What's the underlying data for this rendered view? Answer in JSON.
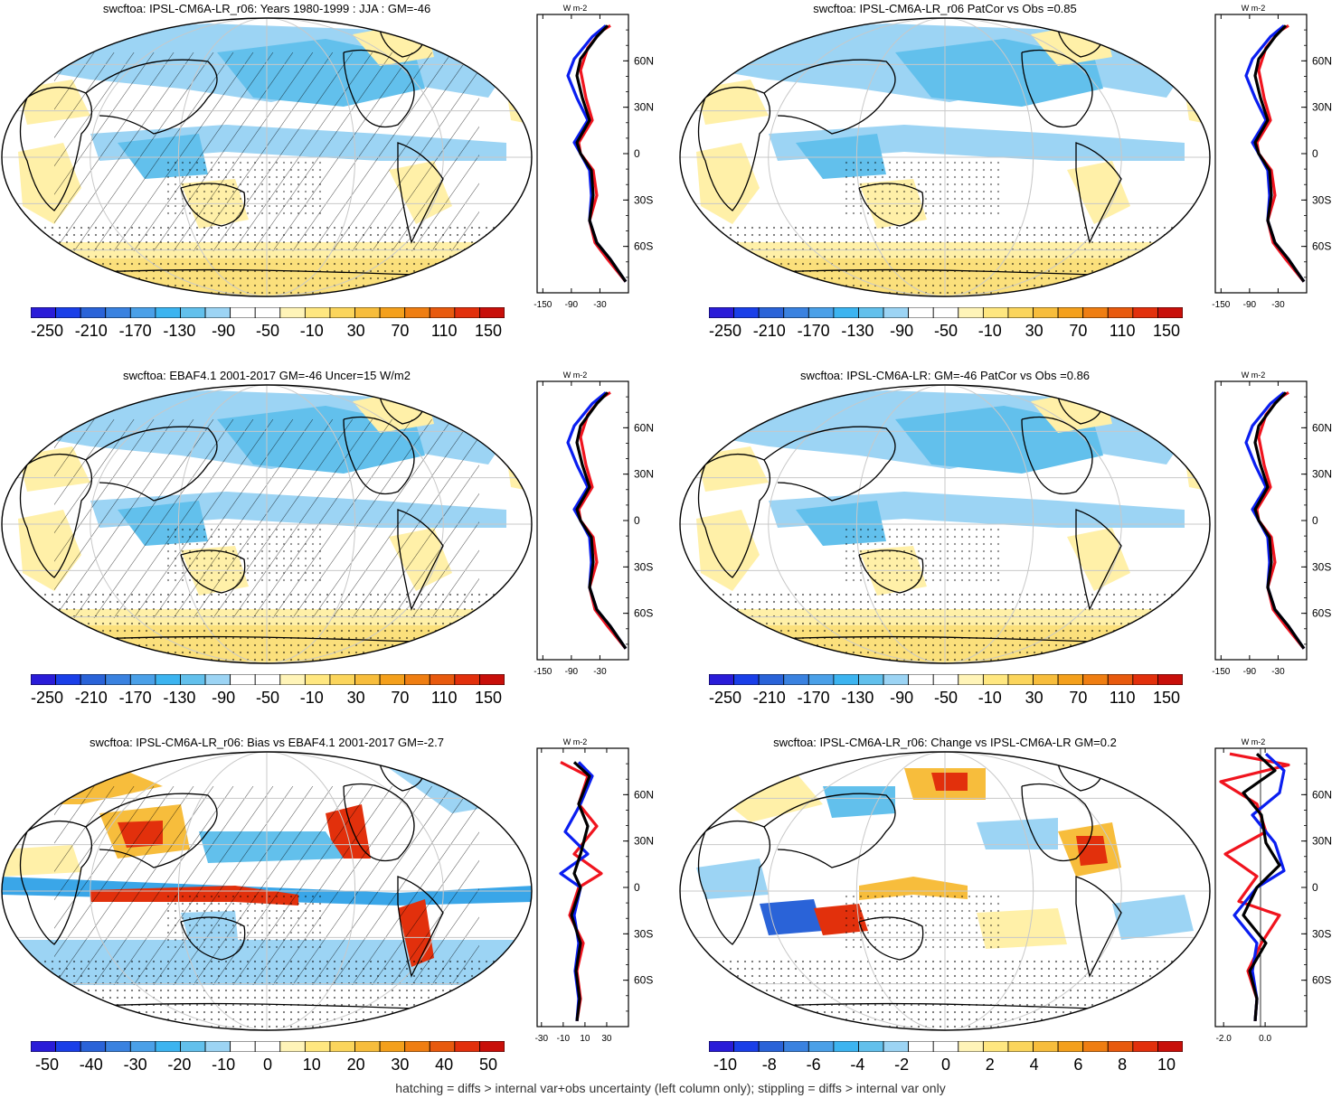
{
  "footer": "hatching = diffs > internal var+obs uncertainty (left column only); stippling = diffs > internal var only",
  "colors": {
    "colorbar_fill": [
      "#2a1cd8",
      "#1a3fe8",
      "#2a63d8",
      "#3a82e0",
      "#4aa0e8",
      "#3cb4f0",
      "#62c0ec",
      "#9cd4f4",
      "#ffffff",
      "#ffffff",
      "#fff4b8",
      "#ffe780",
      "#fbd55c",
      "#f7bd3c",
      "#f4a01c",
      "#ef7e12",
      "#e85a0e",
      "#e2300c",
      "#c80f0a"
    ],
    "model_line": "#000000",
    "obs_line": "#0a1ef0",
    "second_line": "#f0141e"
  },
  "panels": [
    {
      "id": "p1",
      "title": "swcftoa: IPSL-CM6A-LR_r06: Years 1980-1999 : JJA : GM=-46",
      "colorbar_labels": [
        "-250",
        "-210",
        "-170",
        "-130",
        "-90",
        "-50",
        "-10",
        "30",
        "70",
        "110",
        "150"
      ],
      "profile_xticks": [
        "-150",
        "-90",
        "-30"
      ],
      "profile_ylabels": [
        "60N",
        "30N",
        "0",
        "30S",
        "60S"
      ],
      "profile_unit": "W m-2",
      "hatching": true,
      "stippling": true,
      "map_style": "clim"
    },
    {
      "id": "p2",
      "title": "swcftoa: IPSL-CM6A-LR_r06 PatCor vs Obs =0.85",
      "colorbar_labels": [
        "-250",
        "-210",
        "-170",
        "-130",
        "-90",
        "-50",
        "-10",
        "30",
        "70",
        "110",
        "150"
      ],
      "profile_xticks": [
        "-150",
        "-90",
        "-30"
      ],
      "profile_ylabels": [
        "60N",
        "30N",
        "0",
        "30S",
        "60S"
      ],
      "profile_unit": "W m-2",
      "hatching": false,
      "stippling": true,
      "map_style": "clim"
    },
    {
      "id": "p3",
      "title": "swcftoa: EBAF4.1 2001-2017 GM=-46 Uncer=15 W/m2",
      "colorbar_labels": [
        "-250",
        "-210",
        "-170",
        "-130",
        "-90",
        "-50",
        "-10",
        "30",
        "70",
        "110",
        "150"
      ],
      "profile_xticks": [
        "-150",
        "-90",
        "-30"
      ],
      "profile_ylabels": [
        "60N",
        "30N",
        "0",
        "30S",
        "60S"
      ],
      "profile_unit": "W m-2",
      "hatching": true,
      "stippling": true,
      "map_style": "clim"
    },
    {
      "id": "p4",
      "title": "swcftoa: IPSL-CM6A-LR: GM=-46 PatCor vs Obs =0.86",
      "colorbar_labels": [
        "-250",
        "-210",
        "-170",
        "-130",
        "-90",
        "-50",
        "-10",
        "30",
        "70",
        "110",
        "150"
      ],
      "profile_xticks": [
        "-150",
        "-90",
        "-30"
      ],
      "profile_ylabels": [
        "60N",
        "30N",
        "0",
        "30S",
        "60S"
      ],
      "profile_unit": "W m-2",
      "hatching": false,
      "stippling": true,
      "map_style": "clim"
    },
    {
      "id": "p5",
      "title": "swcftoa: IPSL-CM6A-LR_r06: Bias vs EBAF4.1 2001-2017 GM=-2.7",
      "colorbar_labels": [
        "-50",
        "-40",
        "-30",
        "-20",
        "-10",
        "0",
        "10",
        "20",
        "30",
        "40",
        "50"
      ],
      "profile_xticks": [
        "-30",
        "-10",
        "10",
        "30"
      ],
      "profile_ylabels": [
        "60N",
        "30N",
        "0",
        "30S",
        "60S"
      ],
      "profile_unit": "W m-2",
      "hatching": true,
      "stippling": true,
      "map_style": "bias"
    },
    {
      "id": "p6",
      "title": "swcftoa: IPSL-CM6A-LR_r06: Change vs IPSL-CM6A-LR GM=0.2",
      "colorbar_labels": [
        "-10",
        "-8",
        "-6",
        "-4",
        "-2",
        "0",
        "2",
        "4",
        "6",
        "8",
        "10"
      ],
      "profile_xticks": [
        "-2.0",
        "0.0"
      ],
      "profile_ylabels": [
        "60N",
        "30N",
        "0",
        "30S",
        "60S"
      ],
      "profile_unit": "W m-2",
      "hatching": false,
      "stippling": true,
      "map_style": "change"
    }
  ]
}
